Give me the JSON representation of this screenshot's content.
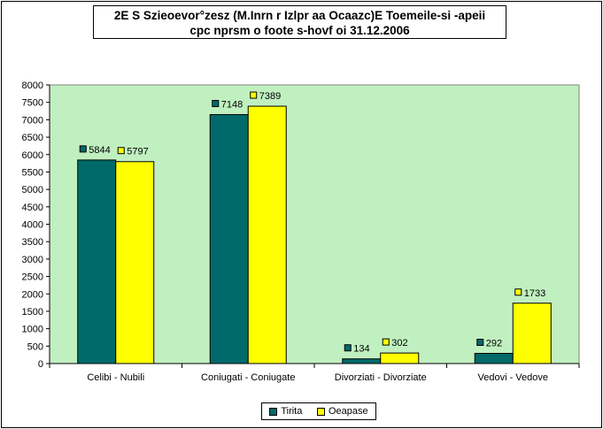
{
  "chart_data": {
    "type": "bar",
    "title_line1": "2E S Szieoevor°zesz (M.Inrn r Izlpr aa Ocaazc)E Toemeile-si -apeii",
    "title_line2": "cpc nprsm o foote s-hovf  oi  31.12.2006",
    "categories": [
      "Celibi - Nubili",
      "Coniugati - Coniugate",
      "Divorziati - Divorziate",
      "Vedovi - Vedove"
    ],
    "series": [
      {
        "name": "Tirita",
        "values": [
          5844,
          7148,
          134,
          292
        ],
        "color": "#006a6a"
      },
      {
        "name": "Oeapase",
        "values": [
          5797,
          7389,
          302,
          1733
        ],
        "color": "#ffff00"
      }
    ],
    "ylim": [
      0,
      8000
    ],
    "yticks": [
      0,
      500,
      1000,
      1500,
      2000,
      2500,
      3000,
      3500,
      4000,
      4500,
      5000,
      5500,
      6000,
      6500,
      7000,
      7500,
      8000
    ],
    "plot_background": "#c0f0c0",
    "legend_position": "bottom",
    "grid": false
  }
}
